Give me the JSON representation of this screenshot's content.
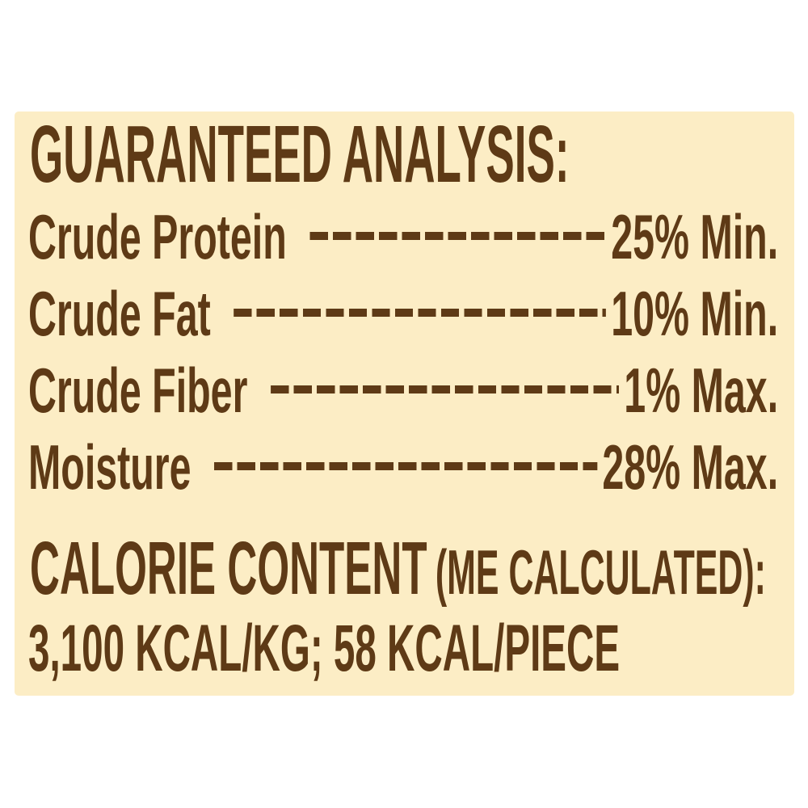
{
  "label": {
    "background_color": "#fcedc5",
    "text_color": "#5e3a16",
    "title": "GUARANTEED ANALYSIS:",
    "analysis": {
      "rows": [
        {
          "label": "Crude Protein",
          "value": "25% Min."
        },
        {
          "label": "Crude Fat",
          "value": "10% Min."
        },
        {
          "label": "Crude Fiber",
          "value": "1% Max."
        },
        {
          "label": "Moisture",
          "value": "28% Max."
        }
      ]
    },
    "calorie": {
      "heading": "CALORIE CONTENT",
      "note": "(ME CALCULATED):",
      "values": "3,100 KCAL/KG; 58 KCAL/PIECE"
    }
  }
}
